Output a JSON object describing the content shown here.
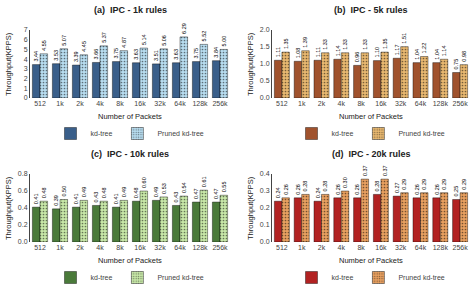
{
  "chart_data": [
    {
      "type": "bar",
      "title": "(a)  IPC - 1k rules",
      "xlabel": "Number of Packets",
      "ylabel": "Throughput(KPPS)",
      "categories": [
        "512",
        "1k",
        "2k",
        "4k",
        "8k",
        "16k",
        "32k",
        "64k",
        "128k",
        "256k"
      ],
      "series": [
        {
          "name": "kd-tree",
          "color": "#3a5f8a",
          "values": [
            3.44,
            3.53,
            3.39,
            3.66,
            3.75,
            3.63,
            3.51,
            3.63,
            3.75,
            3.84
          ],
          "value_labels": [
            "3.44",
            "3.53",
            "3.39",
            "3.66",
            "3.75",
            "3.63",
            "3.51",
            "3.63",
            "3.75",
            "3.84"
          ]
        },
        {
          "name": "Pruned kd-tree",
          "color": "#b8ddf0",
          "values": [
            4.55,
            5.07,
            4.45,
            5.37,
            4.87,
            5.14,
            5.06,
            6.29,
            5.52,
            5.0
          ],
          "value_labels": [
            "4.55",
            "5.07",
            "4.45",
            "5.37",
            "4.87",
            "5.14",
            "5.06",
            "6.29",
            "5.52",
            "5.00"
          ]
        }
      ],
      "ylim": [
        0,
        7
      ],
      "yticks": [
        0,
        1,
        2,
        3,
        4,
        5,
        6,
        7
      ],
      "grid": false,
      "legend": "bottom",
      "data_labels": true
    },
    {
      "type": "bar",
      "title": "(b)  IPC - 5k rules",
      "xlabel": "Number of Packets",
      "ylabel": "Throughput(KPPS)",
      "categories": [
        "512",
        "1k",
        "2k",
        "4k",
        "8k",
        "16k",
        "32k",
        "64k",
        "128k",
        "256k"
      ],
      "series": [
        {
          "name": "kd-tree",
          "color": "#a0522d",
          "values": [
            1.11,
            1.08,
            1.11,
            1.14,
            0.96,
            1.1,
            1.17,
            1.04,
            1.04,
            0.75
          ],
          "value_labels": [
            "1.11",
            "1.08",
            "1.11",
            "1.14",
            "0.96",
            "1.10",
            "1.17",
            "1.04",
            "1.04",
            "0.75"
          ]
        },
        {
          "name": "Pruned kd-tree",
          "color": "#e8b870",
          "values": [
            1.35,
            1.39,
            1.33,
            1.33,
            1.33,
            1.35,
            1.51,
            1.22,
            1.14,
            0.98
          ],
          "value_labels": [
            "1.35",
            "1.39",
            "1.33",
            "1.33",
            "1.33",
            "1.35",
            "1.51",
            "1.22",
            "1.14",
            "0.98"
          ]
        }
      ],
      "ylim": [
        0,
        2
      ],
      "yticks": [
        {
          "value": 0,
          "label": "0.0"
        },
        0.5,
        {
          "value": 1,
          "label": "1.0"
        },
        1.5,
        {
          "value": 2,
          "label": "2.0"
        }
      ],
      "grid": false,
      "legend": "bottom",
      "data_labels": true
    },
    {
      "type": "bar",
      "title": "(c)  IPC - 10k rules",
      "xlabel": "Number of Packets",
      "ylabel": "Throughput(KPPS)",
      "categories": [
        "512",
        "1k",
        "2k",
        "4k",
        "8k",
        "16k",
        "32k",
        "64k",
        "128k",
        "256k"
      ],
      "series": [
        {
          "name": "kd-tree",
          "color": "#4a7a3a",
          "values": [
            0.41,
            0.39,
            0.41,
            0.43,
            0.41,
            0.48,
            0.49,
            0.43,
            0.47,
            0.47
          ],
          "value_labels": [
            "0.41",
            "0.39",
            "0.41",
            "0.43",
            "0.41",
            "0.48",
            "0.49",
            "0.43",
            "0.47",
            "0.47"
          ]
        },
        {
          "name": "Pruned kd-tree",
          "color": "#c8e8a8",
          "values": [
            0.48,
            0.5,
            0.49,
            0.48,
            0.49,
            0.6,
            0.53,
            0.54,
            0.61,
            0.55
          ],
          "value_labels": [
            "0.48",
            "0.50",
            "0.49",
            "0.48",
            "0.49",
            "0.60",
            "0.53",
            "0.54",
            "0.61",
            "0.55"
          ]
        }
      ],
      "ylim": [
        0,
        0.8
      ],
      "yticks": [
        {
          "value": 0,
          "label": "0.0"
        },
        0.2,
        0.4,
        0.6,
        0.8
      ],
      "grid": false,
      "legend": "bottom",
      "data_labels": true
    },
    {
      "type": "bar",
      "title": "(d)  IPC - 20k rules",
      "xlabel": "Number of Packets",
      "ylabel": "Throughput(KPPS)",
      "categories": [
        "512",
        "1k",
        "2k",
        "4k",
        "8k",
        "16k",
        "32k",
        "64k",
        "128k",
        "256k"
      ],
      "series": [
        {
          "name": "kd-tree",
          "color": "#b22222",
          "values": [
            0.24,
            0.26,
            0.24,
            0.26,
            0.26,
            0.28,
            0.27,
            0.26,
            0.26,
            0.25
          ],
          "value_labels": [
            "0.24",
            "0.26",
            "0.24",
            "0.26",
            "0.26",
            "0.28",
            "0.27",
            "0.26",
            "0.26",
            "0.25"
          ]
        },
        {
          "name": "Pruned kd-tree",
          "color": "#e8a060",
          "values": [
            0.26,
            0.28,
            0.28,
            0.3,
            0.37,
            0.37,
            0.29,
            0.29,
            0.29,
            0.29
          ],
          "value_labels": [
            "0.26",
            "0.28",
            "0.28",
            "0.30",
            "0.37",
            "0.37",
            "0.29",
            "0.29",
            "0.29",
            "0.29"
          ]
        }
      ],
      "ylim": [
        0,
        0.4
      ],
      "yticks": [
        {
          "value": 0,
          "label": "0.0"
        },
        0.1,
        0.2,
        0.3,
        0.4
      ],
      "grid": false,
      "legend": "bottom",
      "data_labels": true
    }
  ]
}
